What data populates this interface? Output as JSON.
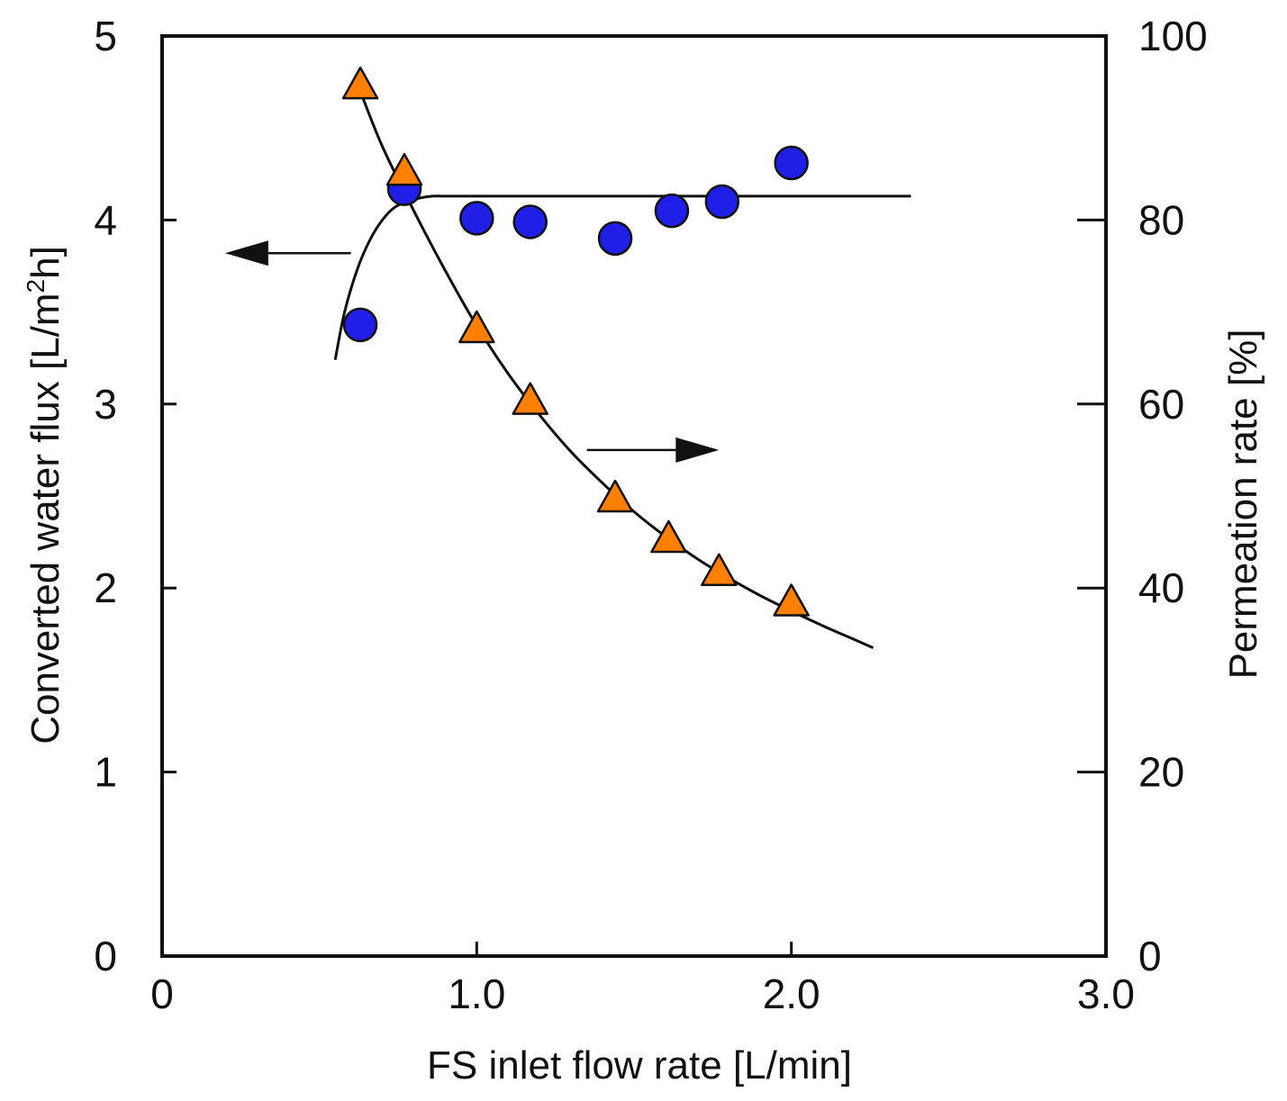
{
  "chart_data": {
    "type": "scatter",
    "title": "",
    "xlabel": "FS inlet flow rate [L/min]",
    "ylabel_left": {
      "prefix": "Converted water flux [L/m",
      "superscript": "2",
      "suffix": "h]"
    },
    "ylabel_right": "Permeation rate [%]",
    "xlim": [
      0,
      3.0
    ],
    "ylim_left": [
      0,
      5
    ],
    "ylim_right": [
      0,
      100
    ],
    "x_ticks": [
      {
        "value": 0,
        "label": "0"
      },
      {
        "value": 1.0,
        "label": "1.0"
      },
      {
        "value": 2.0,
        "label": "2.0"
      },
      {
        "value": 3.0,
        "label": "3.0"
      }
    ],
    "y_left_ticks": [
      {
        "value": 0,
        "label": "0"
      },
      {
        "value": 1,
        "label": "1"
      },
      {
        "value": 2,
        "label": "2"
      },
      {
        "value": 3,
        "label": "3"
      },
      {
        "value": 4,
        "label": "4"
      },
      {
        "value": 5,
        "label": "5"
      }
    ],
    "y_right_ticks": [
      {
        "value": 0,
        "label": "0"
      },
      {
        "value": 20,
        "label": "20"
      },
      {
        "value": 40,
        "label": "40"
      },
      {
        "value": 60,
        "label": "60"
      },
      {
        "value": 80,
        "label": "80"
      },
      {
        "value": 100,
        "label": "100"
      }
    ],
    "series": [
      {
        "name": "Converted water flux",
        "axis": "left",
        "marker": "circle",
        "color": "#1f1fe8",
        "x": [
          0.63,
          0.77,
          1.0,
          1.17,
          1.44,
          1.62,
          1.78,
          2.0
        ],
        "y": [
          3.43,
          4.17,
          4.01,
          3.99,
          3.9,
          4.05,
          4.1,
          4.31
        ]
      },
      {
        "name": "Permeation rate",
        "axis": "right",
        "marker": "triangle",
        "color": "#ff8000",
        "x": [
          0.63,
          0.77,
          1.0,
          1.17,
          1.44,
          1.61,
          1.77,
          2.0
        ],
        "y": [
          94.5,
          85.1,
          68.0,
          60.2,
          49.6,
          45.2,
          41.6,
          38.3
        ]
      }
    ],
    "fit_curves": [
      {
        "name": "flux trend",
        "axis": "left",
        "x": [
          0.55,
          0.58,
          0.62,
          0.66,
          0.7,
          0.74,
          0.78,
          0.82,
          0.86,
          0.9,
          1.0,
          1.5,
          2.0,
          2.38
        ],
        "y": [
          3.24,
          3.5,
          3.73,
          3.89,
          4.0,
          4.07,
          4.1,
          4.12,
          4.13,
          4.13,
          4.13,
          4.13,
          4.13,
          4.13
        ]
      },
      {
        "name": "permeation trend",
        "axis": "right",
        "x": [
          0.63,
          0.7,
          0.8,
          0.9,
          1.0,
          1.1,
          1.2,
          1.3,
          1.4,
          1.5,
          1.6,
          1.7,
          1.8,
          1.9,
          2.0,
          2.1,
          2.2,
          2.26
        ],
        "y": [
          94.0,
          88.0,
          81.0,
          74.5,
          68.5,
          63.3,
          58.8,
          54.8,
          51.4,
          48.3,
          45.6,
          43.2,
          41.1,
          39.2,
          37.5,
          35.9,
          34.4,
          33.5
        ]
      }
    ],
    "annotations": [
      {
        "type": "arrow",
        "direction": "left",
        "meaning": "points to left axis (flux)",
        "from": [
          0.6,
          3.82
        ],
        "to": [
          0.2,
          3.82
        ]
      },
      {
        "type": "arrow",
        "direction": "right",
        "meaning": "points to right axis (permeation rate)",
        "from": [
          1.35,
          2.75
        ],
        "to": [
          1.77,
          2.75
        ]
      }
    ]
  }
}
